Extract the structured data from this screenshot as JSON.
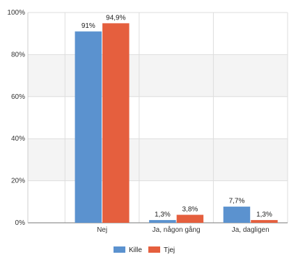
{
  "chart_data": {
    "type": "bar",
    "categories": [
      "Nej",
      "Ja, någon gång",
      "Ja, dagligen"
    ],
    "series": [
      {
        "name": "Kille",
        "color": "#5b92cf",
        "values": [
          91,
          1.3,
          7.7
        ],
        "labels": [
          "91%",
          "1,3%",
          "7,7%"
        ]
      },
      {
        "name": "Tjej",
        "color": "#e55f3e",
        "values": [
          94.9,
          3.8,
          1.3
        ],
        "labels": [
          "94,9%",
          "3,8%",
          "1,3%"
        ]
      }
    ],
    "ylim": [
      0,
      100
    ],
    "yticks": [
      0,
      20,
      40,
      60,
      80,
      100
    ],
    "ytick_labels": [
      "0%",
      "20%",
      "40%",
      "60%",
      "80%",
      "100%"
    ],
    "grid": true,
    "legend_position": "bottom-center"
  }
}
